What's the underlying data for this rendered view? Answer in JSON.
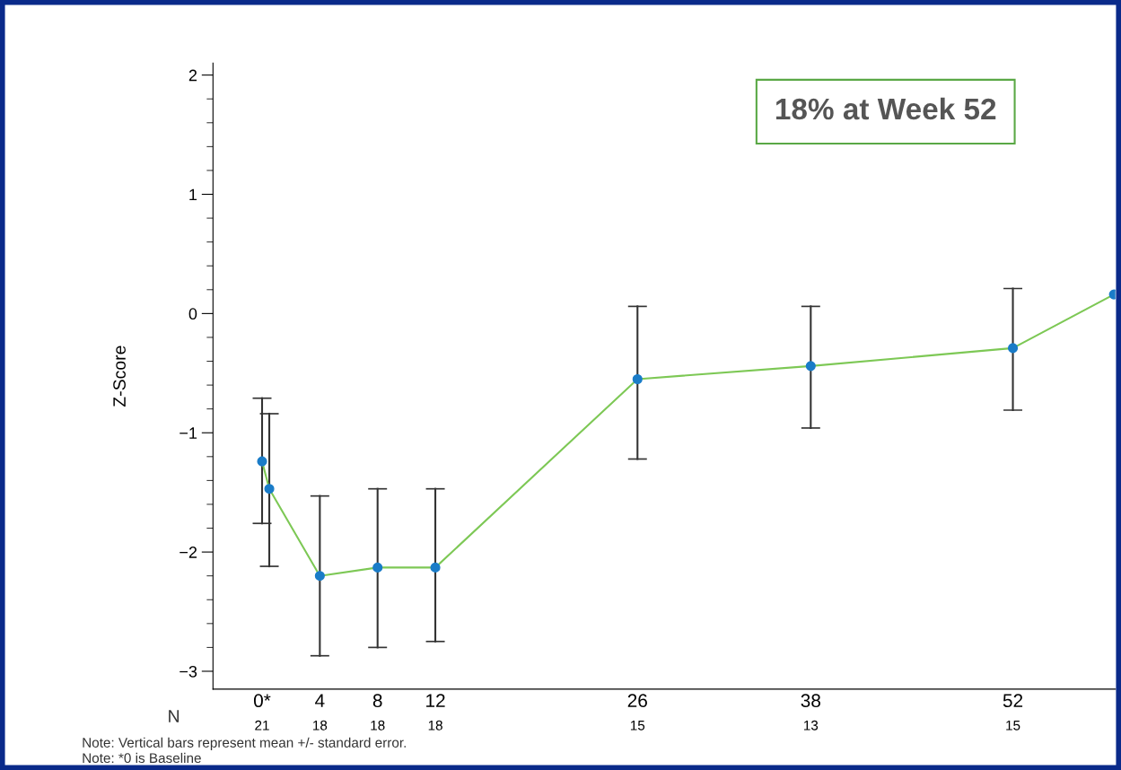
{
  "chart_data": {
    "type": "line",
    "ylabel": "Z-Score",
    "x": [
      0,
      0.5,
      4,
      8,
      12,
      26,
      38,
      52,
      59
    ],
    "series": [
      {
        "color": "#7dc855",
        "values": [
          -1.24,
          -1.47,
          -2.2,
          -2.13,
          -2.13,
          -0.55,
          -0.44,
          -0.29,
          0.16
        ],
        "errors": [
          [
            -1.76,
            -0.71
          ],
          [
            -2.12,
            -0.84
          ],
          [
            -2.87,
            -1.53
          ],
          [
            -2.8,
            -1.47
          ],
          [
            -2.75,
            -1.47
          ],
          [
            -1.22,
            0.06
          ],
          [
            -0.96,
            0.06
          ],
          [
            -0.81,
            0.21
          ],
          null
        ]
      }
    ],
    "marker": "circle",
    "line_style": "solid",
    "grid": false,
    "legend": false,
    "xlim": [
      -3.4,
      59.1
    ],
    "ylim": [
      -3.15,
      2.1
    ],
    "xticks": [
      {
        "value": 0,
        "label": "0*"
      },
      4,
      8,
      12,
      26,
      38,
      52
    ],
    "yticks": [
      {
        "value": -3,
        "label": "−3"
      },
      {
        "value": -2,
        "label": "−2"
      },
      {
        "value": -1,
        "label": "−1"
      },
      0,
      1,
      2
    ],
    "annotations": [
      "18% at Week 52",
      "N",
      "Note: Vertical bars represent mean +/- standard error.",
      "Note: *0 is Baseline",
      "21",
      "18",
      "18",
      "18",
      "15",
      "13",
      "15"
    ]
  }
}
